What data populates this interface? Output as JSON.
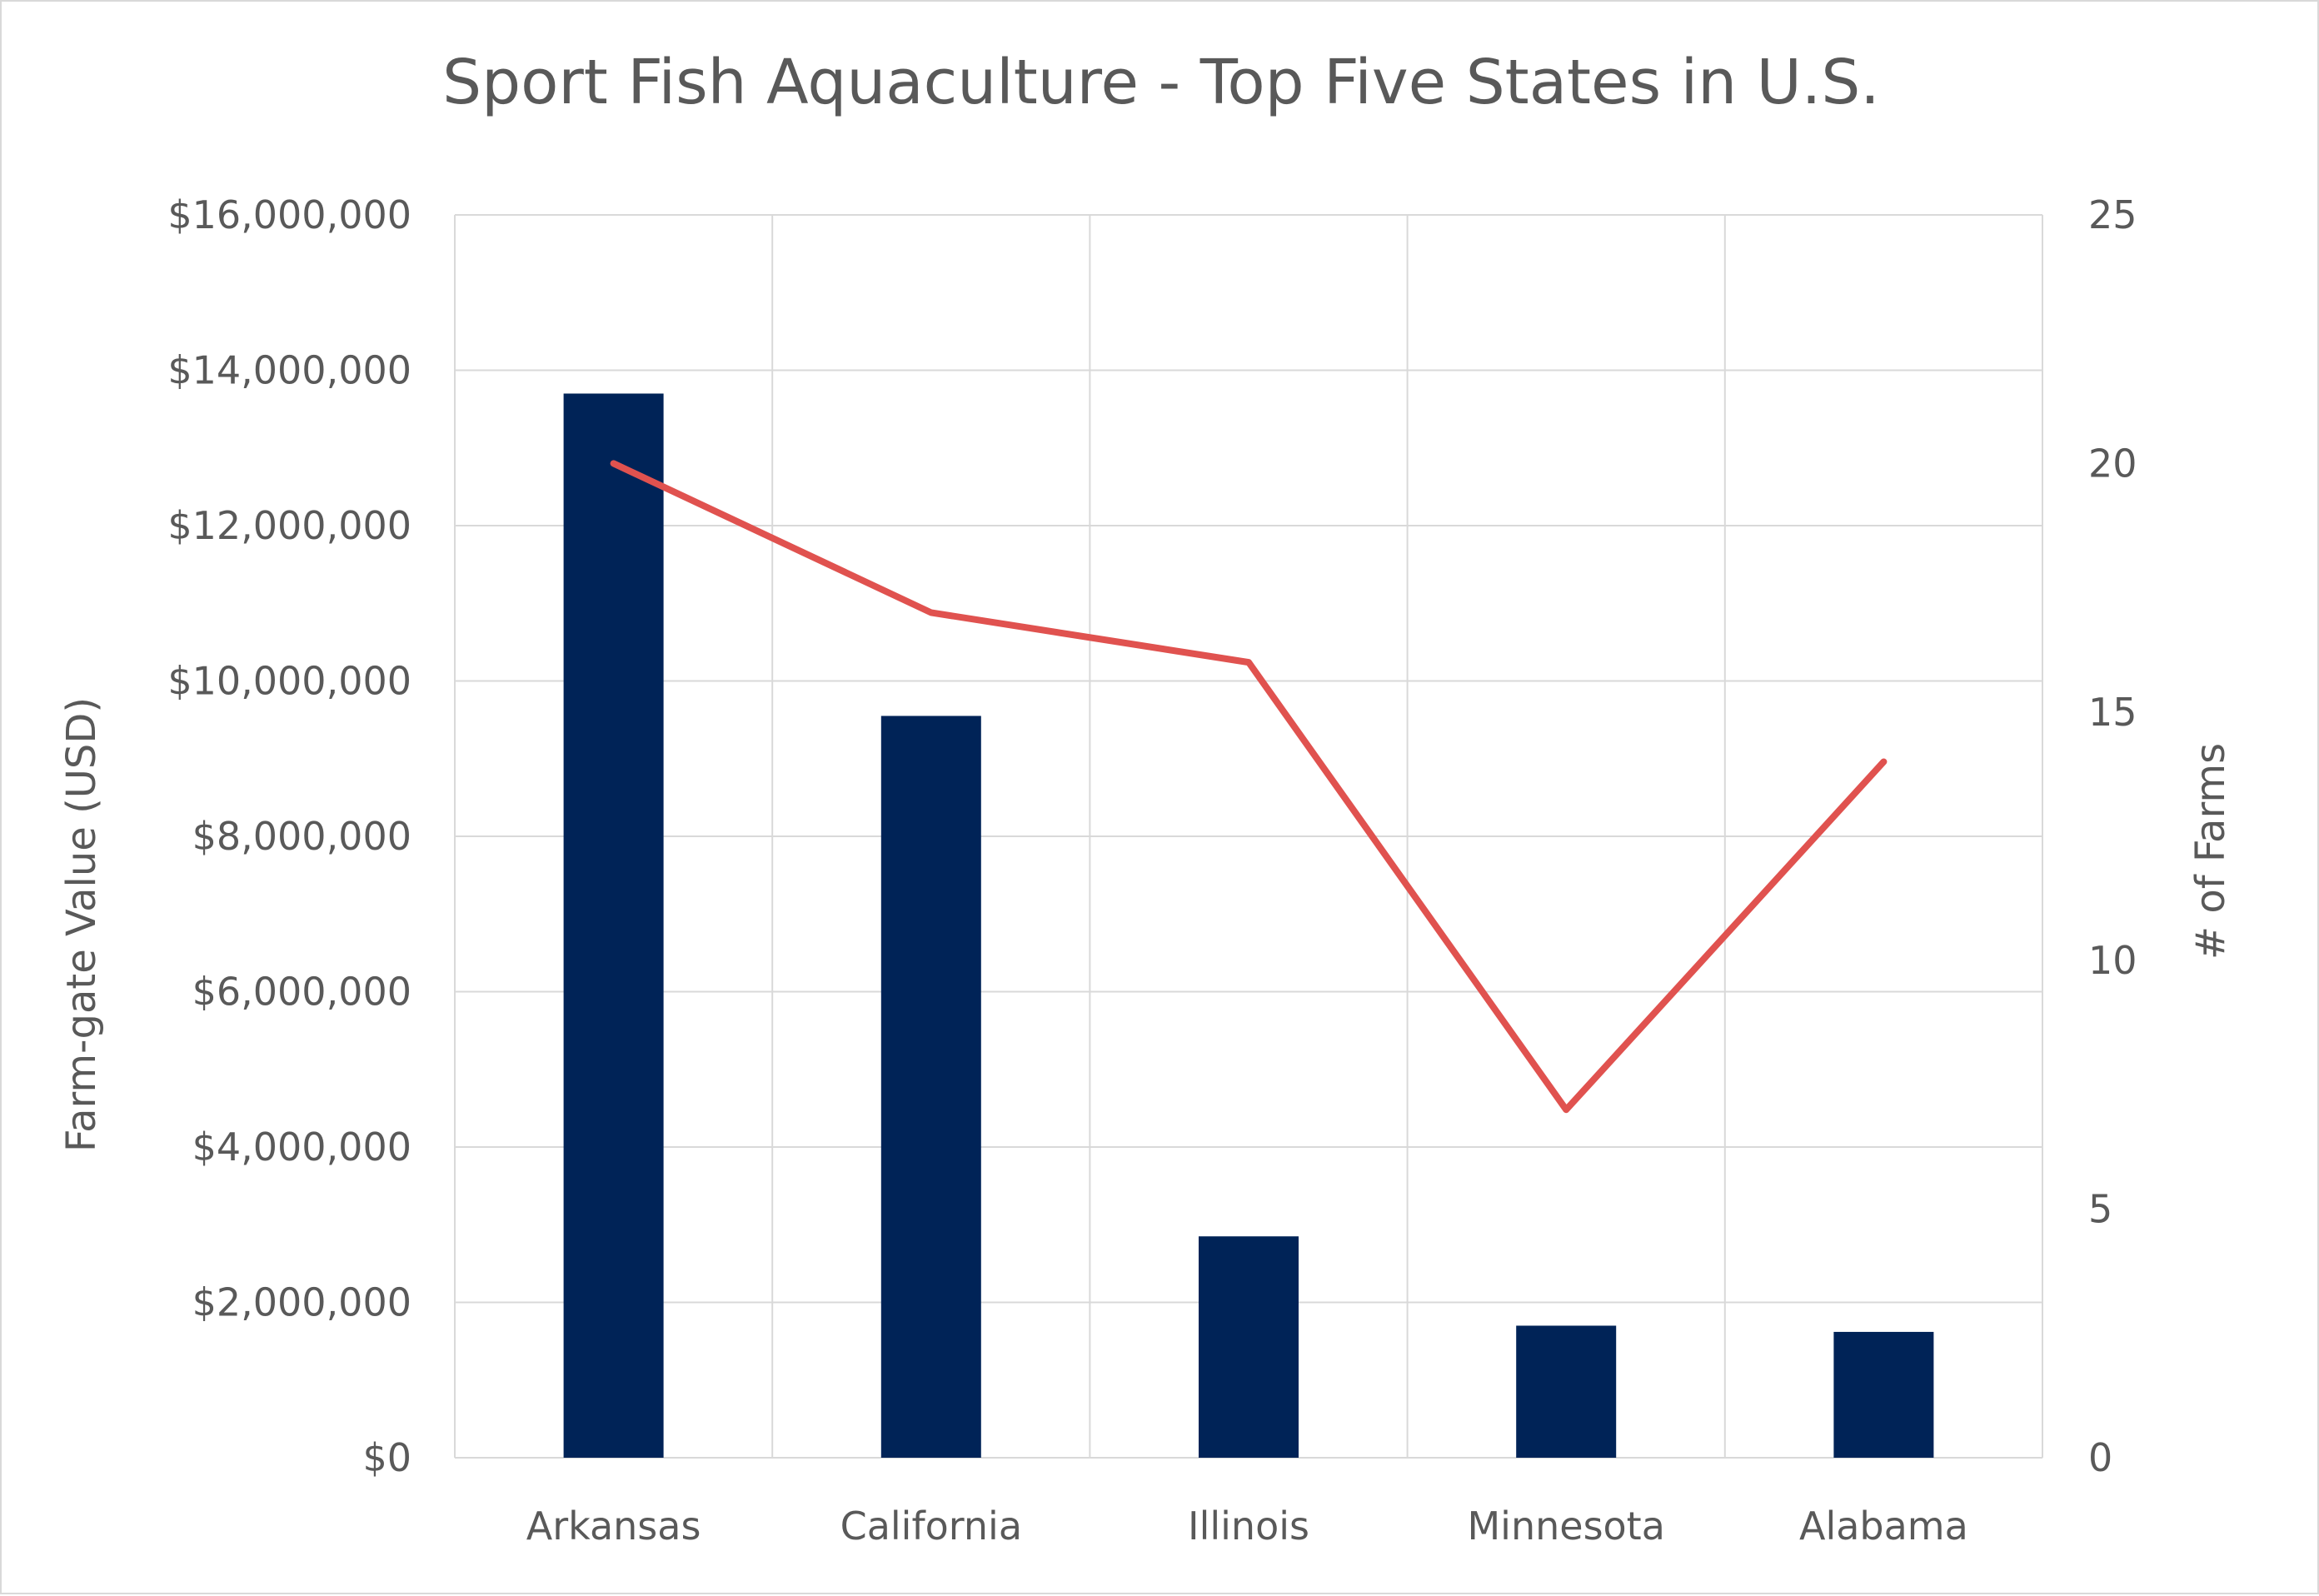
{
  "chart_data": {
    "type": "bar",
    "title": "Sport Fish Aquaculture - Top Five States in U.S.",
    "categories": [
      "Arkansas",
      "California",
      "Illinois",
      "Minnesota",
      "Alabama"
    ],
    "series": [
      {
        "type": "bar",
        "axis": "left",
        "color": "#002357",
        "values": [
          13700000,
          9550000,
          2850000,
          1700000,
          1620000
        ]
      },
      {
        "type": "line",
        "axis": "right",
        "color": "#e0524f",
        "values": [
          20,
          17,
          16,
          7,
          14
        ]
      }
    ],
    "ylabel": "Farm-gate Value (USD)",
    "ylim": [
      0,
      16000000
    ],
    "y_ticks": [
      "$0",
      "$2,000,000",
      "$4,000,000",
      "$6,000,000",
      "$8,000,000",
      "$10,000,000",
      "$12,000,000",
      "$14,000,000",
      "$16,000,000"
    ],
    "y2label": "# of Farms",
    "y2lim": [
      0,
      25
    ],
    "y2_ticks": [
      "0",
      "5",
      "10",
      "15",
      "20",
      "25"
    ],
    "grid": true,
    "legend": "none"
  }
}
